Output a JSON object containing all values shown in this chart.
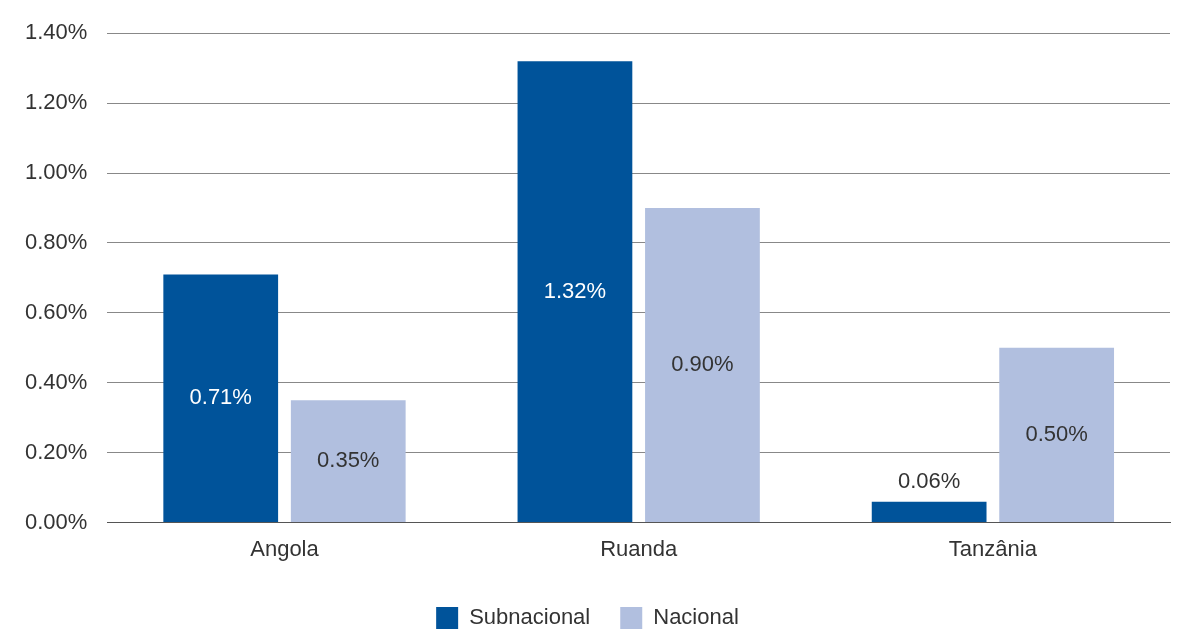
{
  "chart_data": {
    "type": "bar",
    "categories": [
      "Angola",
      "Ruanda",
      "Tanzânia"
    ],
    "series": [
      {
        "name": "Subnacional",
        "color": "#00539a",
        "values": [
          0.71,
          1.32,
          0.06
        ],
        "value_labels": [
          "0.71%",
          "1.32%",
          "0.06%"
        ]
      },
      {
        "name": "Nacional",
        "color": "#b1bfdf",
        "values": [
          0.35,
          0.9,
          0.5
        ],
        "value_labels": [
          "0.35%",
          "0.90%",
          "0.50%"
        ]
      }
    ],
    "ylim": [
      0,
      1.4
    ],
    "yticks": [
      {
        "value": 0,
        "label": "0.00%"
      },
      {
        "value": 0.2,
        "label": "0.20%"
      },
      {
        "value": 0.4,
        "label": "0.40%"
      },
      {
        "value": 0.6,
        "label": "0.60%"
      },
      {
        "value": 0.8,
        "label": "0.80%"
      },
      {
        "value": 1,
        "label": "1.00%"
      },
      {
        "value": 1.2,
        "label": "1.20%"
      },
      {
        "value": 1.4,
        "label": "1.40%"
      }
    ],
    "grid": "y",
    "legend": "bottom"
  }
}
